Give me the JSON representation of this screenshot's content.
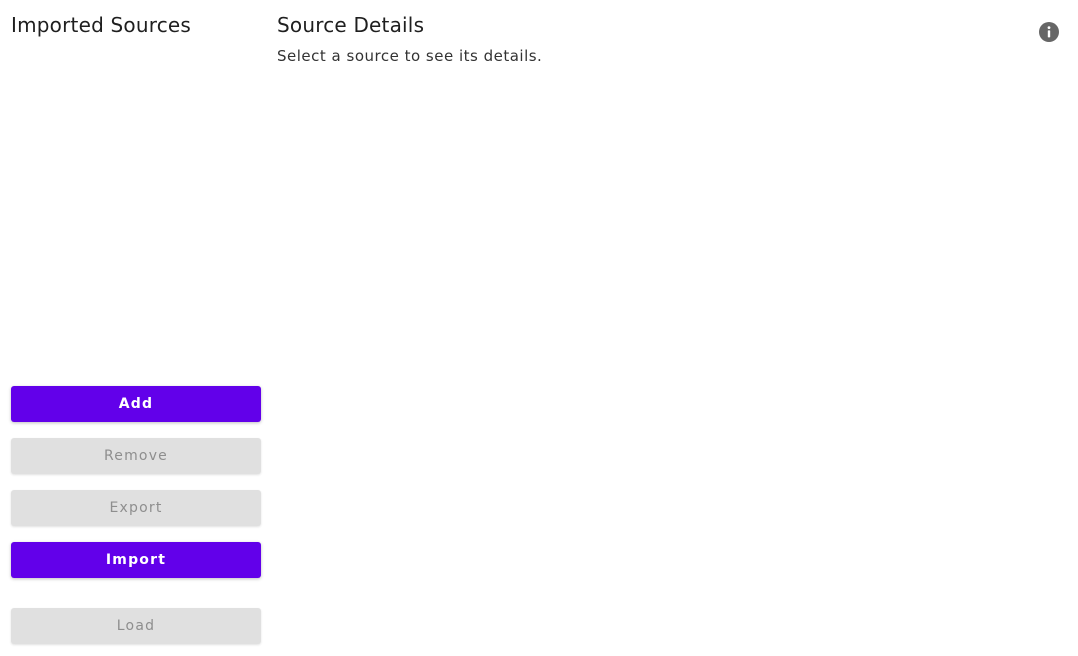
{
  "left_panel": {
    "title": "Imported Sources",
    "buttons": {
      "add": "Add",
      "remove": "Remove",
      "export": "Export",
      "import": "Import",
      "load": "Load"
    }
  },
  "right_panel": {
    "title": "Source Details",
    "hint": "Select a source to see its details."
  },
  "icons": {
    "info": "info-icon"
  },
  "colors": {
    "primary": "#6200ea",
    "disabled_bg": "#e0e0e0",
    "disabled_text": "#8e8e8e",
    "info_icon": "#666666"
  }
}
